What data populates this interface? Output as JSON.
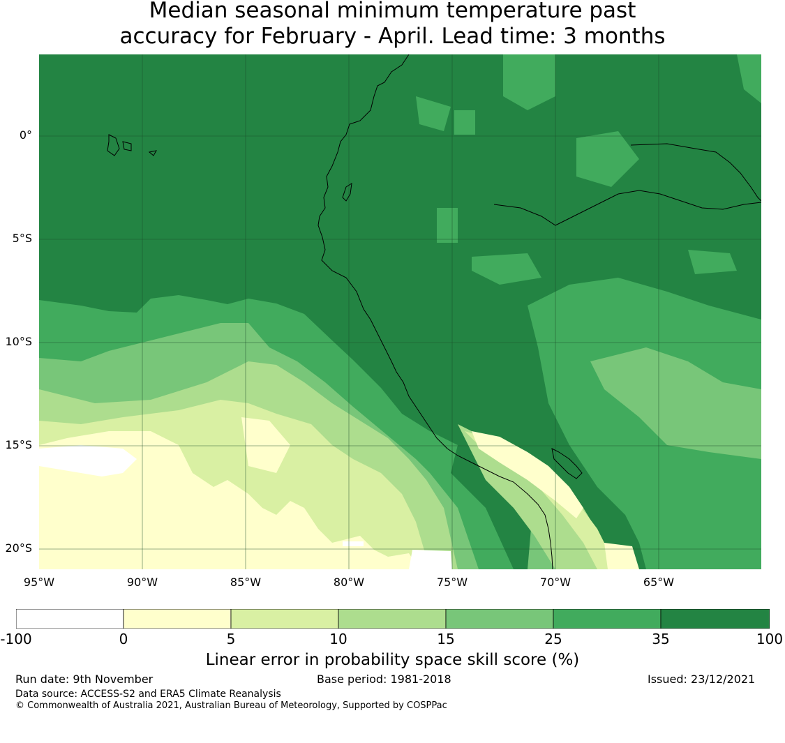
{
  "title_line1": "Median seasonal minimum temperature past",
  "title_line2": "accuracy for February - April. Lead time: 3 months",
  "map": {
    "lat_labels": [
      "0°",
      "5°S",
      "10°S",
      "15°S",
      "20°S"
    ],
    "lon_labels": [
      "95°W",
      "90°W",
      "85°W",
      "80°W",
      "75°W",
      "70°W",
      "65°W"
    ],
    "lat_range": [
      -21,
      4
    ],
    "lon_range": [
      -95,
      -60
    ],
    "colors": {
      "lt0": "#ffffff",
      "c0_5": "#ffffcc",
      "c5_10": "#d9f0a3",
      "c10_15": "#addd8e",
      "c15_25": "#78c679",
      "c25_35": "#41ab5d",
      "c35_100": "#238443",
      "coast": "#000000",
      "grid": "#1a4d2a"
    }
  },
  "colorbar": {
    "ticks": [
      "-100",
      "0",
      "5",
      "10",
      "15",
      "25",
      "35",
      "100"
    ],
    "colors": [
      "#ffffff",
      "#ffffcc",
      "#d9f0a3",
      "#addd8e",
      "#78c679",
      "#41ab5d",
      "#238443"
    ],
    "label": "Linear error in probability space skill score (%)"
  },
  "footer": {
    "run_date": "Run date: 9th November",
    "base_period": "Base period: 1981-2018",
    "issued": "Issued: 23/12/2021",
    "data_source": "Data source: ACCESS-S2 and ERA5 Climate Reanalysis",
    "copyright": "© Commonwealth of Australia 2021, Australian Bureau of Meteorology, Supported by COSPPac"
  }
}
